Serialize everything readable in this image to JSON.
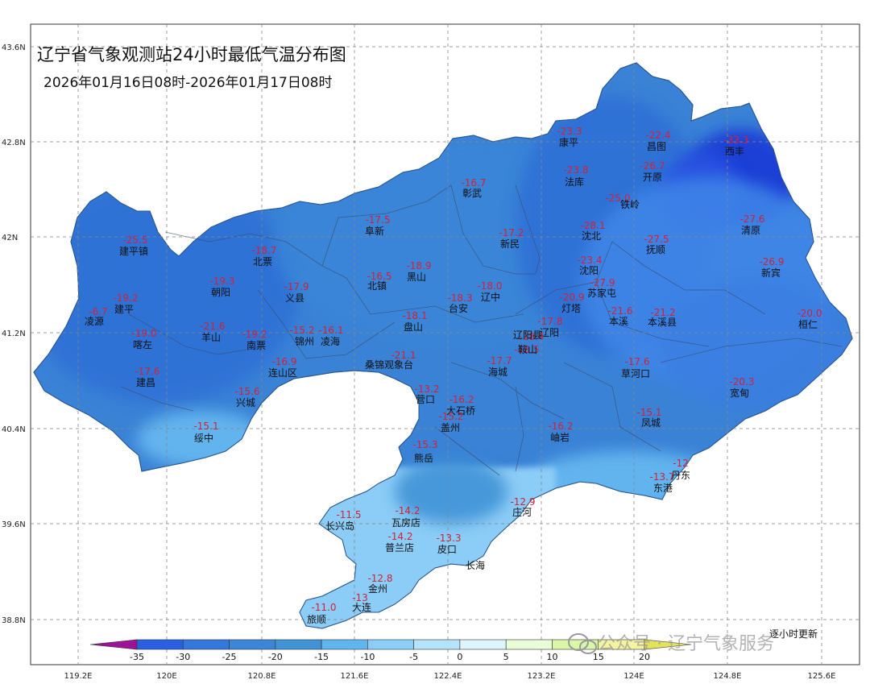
{
  "title": "辽宁省气象观测站24小时最低气温分布图",
  "subtitle": "2026年01月16日08时-2026年01月17日08时",
  "axes": {
    "lat_labels": [
      "43.6N",
      "42.8N",
      "42N",
      "41.2N",
      "40.4N",
      "39.6N",
      "38.8N"
    ],
    "lon_labels": [
      "119.2E",
      "120E",
      "120.8E",
      "121.6E",
      "122.4E",
      "123.2E",
      "124E",
      "124.8E",
      "125.6E"
    ]
  },
  "colorbar": {
    "ticks": [
      "-35",
      "-30",
      "-25",
      "-20",
      "-15",
      "-10",
      "-5",
      "0",
      "5",
      "10",
      "15",
      "20"
    ],
    "colors": [
      "#1f3fd6",
      "#2b5fe0",
      "#3477dd",
      "#3a86d8",
      "#3f93d6",
      "#62b4ee",
      "#8ccdf7",
      "#b4e3fb",
      "#dcf4fd",
      "#e9fcd8",
      "#d9f7a8",
      "#f2f5a0"
    ],
    "low_end_color": "#a0119a",
    "high_end_color": "#e2e35a"
  },
  "update_note": "逐小时更新",
  "watermark": "公众号 · 辽宁气象服务",
  "stations": [
    {
      "name": "康平",
      "value": "-23.3"
    },
    {
      "name": "昌图",
      "value": "-22.4"
    },
    {
      "name": "西丰",
      "value": "-33.3"
    },
    {
      "name": "彰武",
      "value": "-16.7"
    },
    {
      "name": "法库",
      "value": "-23.8"
    },
    {
      "name": "开原",
      "value": "-26.7"
    },
    {
      "name": "铁岭",
      "value": "-25.0"
    },
    {
      "name": "阜新",
      "value": "-17.5"
    },
    {
      "name": "新民",
      "value": "-17.2"
    },
    {
      "name": "沈北",
      "value": "-28.1"
    },
    {
      "name": "清原",
      "value": "-27.6"
    },
    {
      "name": "建平镇",
      "value": "-25.5"
    },
    {
      "name": "北票",
      "value": "-18.7"
    },
    {
      "name": "抚顺",
      "value": "-27.5"
    },
    {
      "name": "北镇",
      "value": "-16.5"
    },
    {
      "name": "黑山",
      "value": "-18.9"
    },
    {
      "name": "沈阳",
      "value": "-23.4"
    },
    {
      "name": "新宾",
      "value": "-26.9"
    },
    {
      "name": "朝阳",
      "value": "-19.3"
    },
    {
      "name": "义县",
      "value": "-17.9"
    },
    {
      "name": "台安",
      "value": "-18.3"
    },
    {
      "name": "辽中",
      "value": "-18.0"
    },
    {
      "name": "苏家屯",
      "value": "-27.9"
    },
    {
      "name": "建平",
      "value": "-19.2"
    },
    {
      "name": "凌源",
      "value": "-6.7"
    },
    {
      "name": "灯塔",
      "value": "-20.9"
    },
    {
      "name": "盘山",
      "value": "-18.1"
    },
    {
      "name": "本溪",
      "value": "-21.6"
    },
    {
      "name": "本溪县",
      "value": "-21.2"
    },
    {
      "name": "桓仁",
      "value": "-20.0"
    },
    {
      "name": "喀左",
      "value": "-19.0"
    },
    {
      "name": "羊山",
      "value": "-21.6"
    },
    {
      "name": "南票",
      "value": "-19.2"
    },
    {
      "name": "锦州",
      "value": "-15.2"
    },
    {
      "name": "凌海",
      "value": "-16.1"
    },
    {
      "name": "辽阳",
      "value": "-17.8"
    },
    {
      "name": "辽阳县",
      "value": "-18.4"
    },
    {
      "name": "鞍山",
      "value": "-18.5"
    },
    {
      "name": "桑锦观象台",
      "value": "-21.1"
    },
    {
      "name": "海城",
      "value": "-17.7"
    },
    {
      "name": "建昌",
      "value": "-17.6"
    },
    {
      "name": "连山区",
      "value": "-16.9"
    },
    {
      "name": "草河口",
      "value": "-17.6"
    },
    {
      "name": "宽甸",
      "value": "-20.3"
    },
    {
      "name": "营口",
      "value": "-13.2"
    },
    {
      "name": "兴城",
      "value": "-15.6"
    },
    {
      "name": "大石桥",
      "value": "-16.2"
    },
    {
      "name": "盖州",
      "value": "-15.2"
    },
    {
      "name": "凤城",
      "value": "-15.1"
    },
    {
      "name": "绥中",
      "value": "-15.1"
    },
    {
      "name": "岫岩",
      "value": "-16.2"
    },
    {
      "name": "熊岳",
      "value": "-15.3"
    },
    {
      "name": "丹东",
      "value": "-12"
    },
    {
      "name": "东港",
      "value": "-13.7"
    },
    {
      "name": "庄河",
      "value": "-12.9"
    },
    {
      "name": "长兴岛",
      "value": "-11.5"
    },
    {
      "name": "瓦房店",
      "value": "-14.2"
    },
    {
      "name": "普兰店",
      "value": "-14.2"
    },
    {
      "name": "皮口",
      "value": "-13.3"
    },
    {
      "name": "长海",
      "value": ""
    },
    {
      "name": "金州",
      "value": "-12.8"
    },
    {
      "name": "大连",
      "value": "-13"
    },
    {
      "name": "旅顺",
      "value": "-11.0"
    }
  ]
}
